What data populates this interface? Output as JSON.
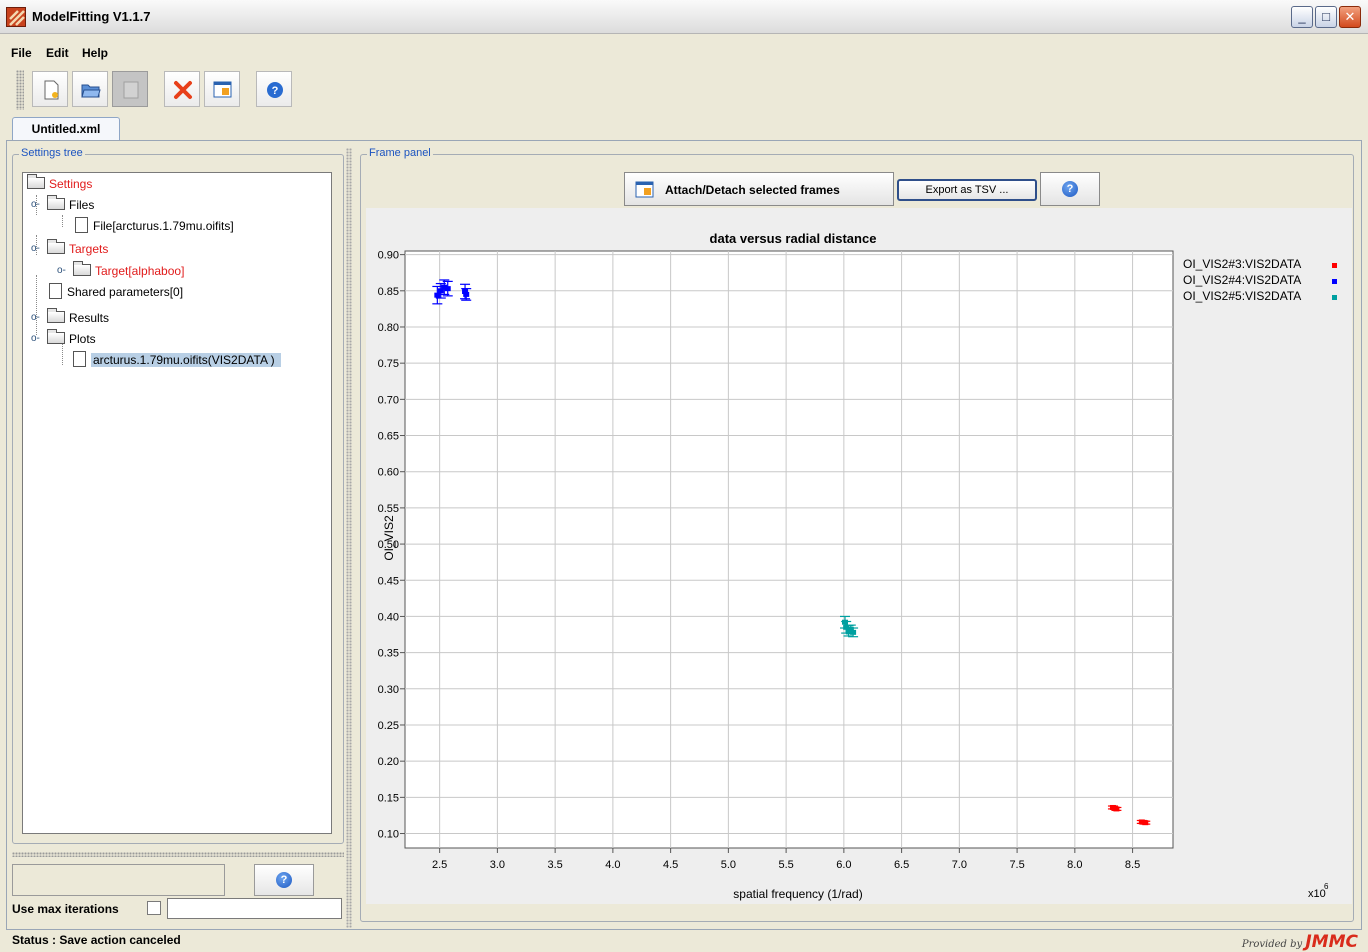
{
  "window": {
    "title": "ModelFitting V1.1.7"
  },
  "menu": [
    {
      "label": "File"
    },
    {
      "label": "Edit"
    },
    {
      "label": "Help"
    }
  ],
  "toolbar": {
    "buttons": [
      {
        "name": "new-file",
        "icon": "new-document-icon"
      },
      {
        "name": "open-file",
        "icon": "open-folder-icon"
      },
      {
        "name": "save-file",
        "icon": "save-icon",
        "disabled": true
      },
      {
        "name": "delete",
        "icon": "red-x-icon"
      },
      {
        "name": "attach-detach",
        "icon": "frames-icon"
      },
      {
        "name": "help",
        "icon": "help-icon"
      }
    ]
  },
  "tab": {
    "label": "Untitled.xml"
  },
  "settings_panel": {
    "legend": "Settings tree",
    "tree": {
      "root": "Settings",
      "files": "Files",
      "file_item": "File[arcturus.1.79mu.oifits]",
      "targets": "Targets",
      "target_item": "Target[alphaboo]",
      "shared": "Shared parameters[0]",
      "results": "Results",
      "plots": "Plots",
      "plot_item": "arcturus.1.79mu.oifits(VIS2DATA )"
    },
    "iterations_label": "Use max iterations",
    "iterations_value": ""
  },
  "frame_panel": {
    "legend": "Frame panel",
    "attach_label": "Attach/Detach selected frames",
    "export_label": "Export as  TSV ..."
  },
  "chart_data": {
    "type": "scatter",
    "title": "data versus radial distance",
    "xlabel": "spatial frequency (1/rad)",
    "ylabel": "OI_VIS2",
    "x_multiplier": "x10",
    "x_multiplier_exponent": "6",
    "xlim": [
      2.2,
      8.85
    ],
    "ylim": [
      0.08,
      0.905
    ],
    "xticks": [
      "2.5",
      "3.0",
      "3.5",
      "4.0",
      "4.5",
      "5.0",
      "5.5",
      "6.0",
      "6.5",
      "7.0",
      "7.5",
      "8.0",
      "8.5"
    ],
    "yticks": [
      "0.90",
      "0.85",
      "0.80",
      "0.75",
      "0.70",
      "0.65",
      "0.60",
      "0.55",
      "0.50",
      "0.45",
      "0.40",
      "0.35",
      "0.30",
      "0.25",
      "0.20",
      "0.15",
      "0.10"
    ],
    "legend_position": "right",
    "series": [
      {
        "name": "OI_VIS2#3:VIS2DATA",
        "color": "#ff0000",
        "points": [
          {
            "x": 8.33,
            "y": 0.136,
            "err": 0.002
          },
          {
            "x": 8.36,
            "y": 0.134,
            "err": 0.002
          },
          {
            "x": 8.58,
            "y": 0.116,
            "err": 0.002
          },
          {
            "x": 8.61,
            "y": 0.115,
            "err": 0.002
          }
        ]
      },
      {
        "name": "OI_VIS2#4:VIS2DATA",
        "color": "#0000ff",
        "points": [
          {
            "x": 2.48,
            "y": 0.844,
            "err": 0.012
          },
          {
            "x": 2.51,
            "y": 0.85,
            "err": 0.01
          },
          {
            "x": 2.54,
            "y": 0.855,
            "err": 0.01
          },
          {
            "x": 2.57,
            "y": 0.853,
            "err": 0.01
          },
          {
            "x": 2.72,
            "y": 0.849,
            "err": 0.01
          },
          {
            "x": 2.73,
            "y": 0.845,
            "err": 0.008
          }
        ]
      },
      {
        "name": "OI_VIS2#5:VIS2DATA",
        "color": "#00a0a0",
        "points": [
          {
            "x": 6.01,
            "y": 0.392,
            "err": 0.008
          },
          {
            "x": 6.02,
            "y": 0.385,
            "err": 0.008
          },
          {
            "x": 6.04,
            "y": 0.38,
            "err": 0.007
          },
          {
            "x": 6.06,
            "y": 0.382,
            "err": 0.006
          },
          {
            "x": 6.08,
            "y": 0.378,
            "err": 0.006
          }
        ]
      }
    ]
  },
  "status": {
    "text": "Status : Save action canceled"
  },
  "credit": {
    "prefix": "Provided by",
    "logo": "JMMC"
  }
}
